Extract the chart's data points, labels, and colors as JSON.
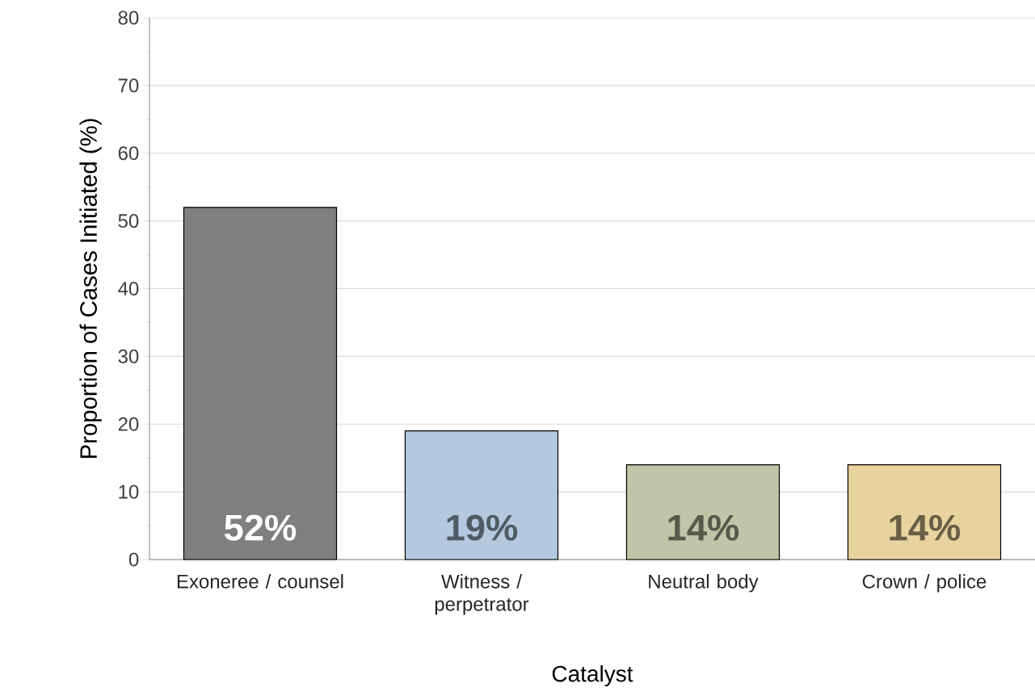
{
  "chart_data": {
    "type": "bar",
    "xlabel": "Catalyst",
    "ylabel": "Proportion of Cases Initiated (%)",
    "categories": [
      "Exoneree / counsel",
      "Witness / perpetrator",
      "Neutral body",
      "Crown / police"
    ],
    "values": [
      52,
      19,
      14,
      14
    ],
    "colors": [
      "#7f7f7f",
      "#b4c9df",
      "#c0c5a7",
      "#e8d29e"
    ],
    "value_labels": [
      "52%",
      "19%",
      "14%",
      "14%"
    ],
    "ylim": [
      0,
      80
    ],
    "yticks": [
      0,
      10,
      20,
      30,
      40,
      50,
      60,
      70,
      80
    ],
    "grid": "y"
  }
}
